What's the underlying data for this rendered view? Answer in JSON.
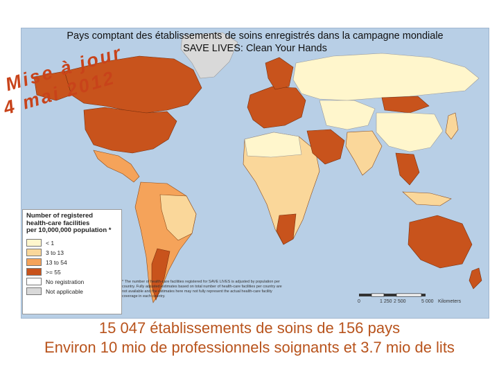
{
  "title": {
    "line1": "Pays comptant des établissements de soins enregistrés dans la campagne mondiale",
    "line2": "SAVE LIVES: Clean Your Hands"
  },
  "stamp": {
    "line1": "Mise à jour",
    "line2": "4 mai 2012"
  },
  "legend": {
    "title_lines": [
      "Number of registered",
      "health-care facilities",
      "per 10,000,000 population *"
    ],
    "items": [
      {
        "label": "< 1",
        "color": "#fff6cc"
      },
      {
        "label": "3 to 13",
        "color": "#fad79a"
      },
      {
        "label": "13 to 54",
        "color": "#f5a35a"
      },
      {
        "label": ">= 55",
        "color": "#c8531c"
      },
      {
        "label": "No registration",
        "color": "#ffffff"
      },
      {
        "label": "Not applicable",
        "color": "#d9d9d9"
      }
    ]
  },
  "footnote": "* The number of health-care facilities registered for SAVE LIVES is adjusted by population per country. Fully adjusted estimates based on total number of health-care facilities per country are not available and the estimates here may not fully represent the actual health-care facility coverage in each country.",
  "scale": {
    "ticks": [
      "0",
      "1 250",
      "2 500",
      "5 000"
    ],
    "unit": "Kilometers"
  },
  "captions": {
    "line1": "15 047 établissements de soins de 156 pays",
    "line2": "Environ 10 mio de professionnels soignants  et 3.7 mio de lits"
  },
  "colors": {
    "ocean": "#b8cfe6",
    "stamp": "#c8431a",
    "caption": "#b8531c"
  }
}
